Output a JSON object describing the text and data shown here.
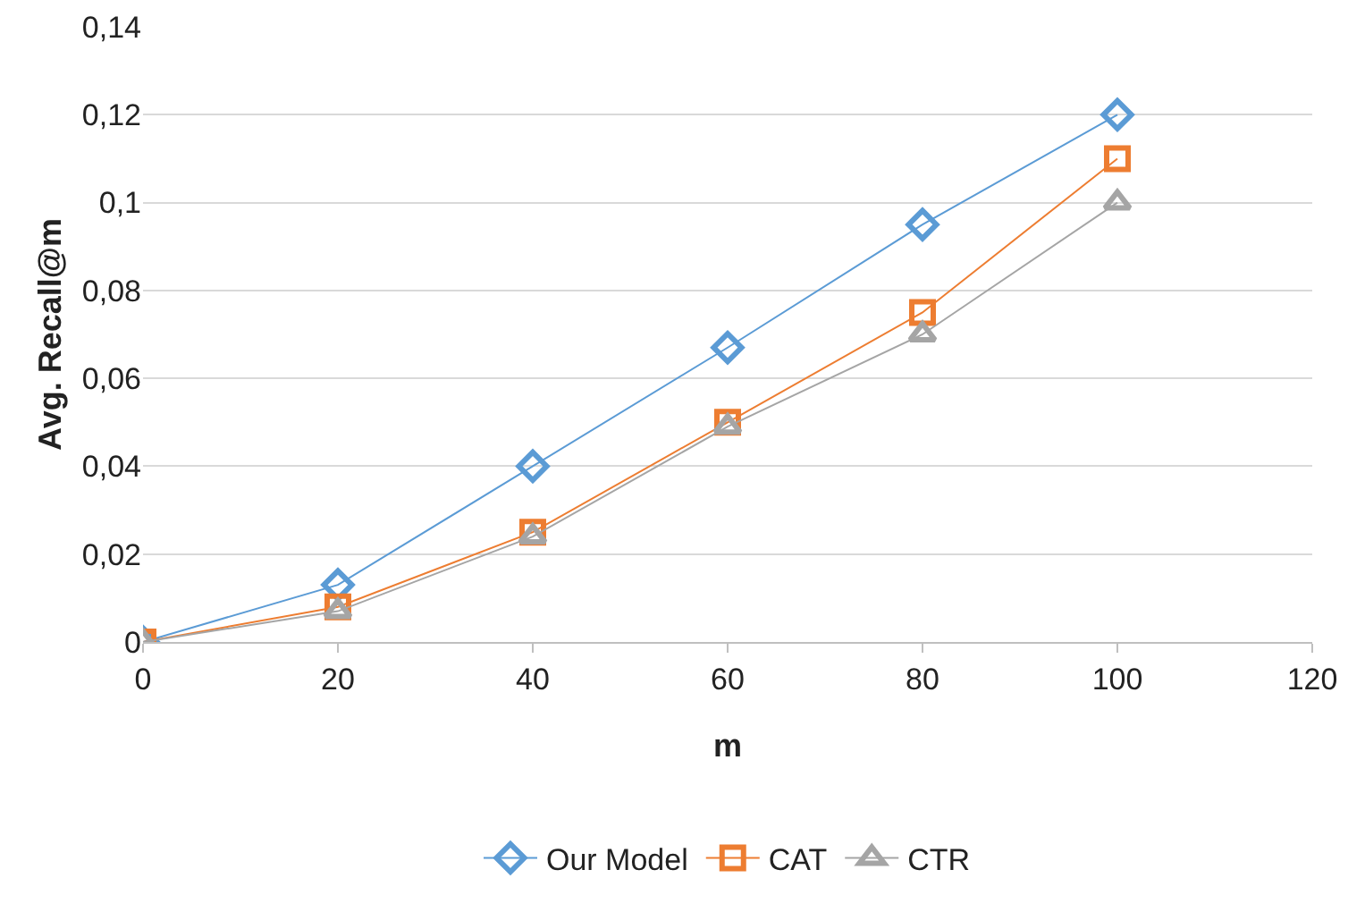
{
  "chart_data": {
    "type": "line",
    "xlabel": "m",
    "ylabel": "Avg. Recall@m",
    "x": [
      0,
      20,
      40,
      60,
      80,
      100
    ],
    "series": [
      {
        "name": "Our Model",
        "color": "#5b9bd5",
        "marker": "diamond",
        "values": [
          0,
          0.013,
          0.04,
          0.067,
          0.095,
          0.12
        ]
      },
      {
        "name": "CAT",
        "color": "#ed7d31",
        "marker": "square",
        "values": [
          0,
          0.008,
          0.025,
          0.05,
          0.075,
          0.11
        ]
      },
      {
        "name": "CTR",
        "color": "#a5a5a5",
        "marker": "triangle",
        "values": [
          0,
          0.007,
          0.024,
          0.049,
          0.07,
          0.1
        ]
      }
    ],
    "xlim": [
      0,
      120
    ],
    "xticks": [
      0,
      20,
      40,
      60,
      80,
      100,
      120
    ],
    "ylim": [
      0,
      0.14
    ],
    "yticks": [
      0,
      {
        "value": 0.02,
        "label": "0,02"
      },
      {
        "value": 0.04,
        "label": "0,04"
      },
      {
        "value": 0.06,
        "label": "0,06"
      },
      {
        "value": 0.08,
        "label": "0,08"
      },
      {
        "value": 0.1,
        "label": "0,1"
      },
      {
        "value": 0.12,
        "label": "0,12"
      },
      {
        "value": 0.14,
        "label": "0,14"
      }
    ],
    "grid": "y",
    "legend": "bottom",
    "line_style": "solid"
  }
}
